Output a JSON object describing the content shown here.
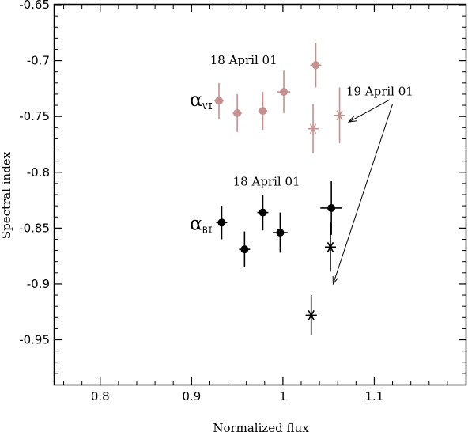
{
  "chart_data": {
    "type": "scatter",
    "title": "",
    "xlabel": "Normalized  flux",
    "ylabel": "Spectral index",
    "xlim": [
      0.75,
      1.2
    ],
    "ylim": [
      -0.99,
      -0.65
    ],
    "x_ticks": [
      0.8,
      0.9,
      1,
      1.1
    ],
    "x_tick_labels": [
      "0.8",
      "0.9",
      "1",
      "1.1"
    ],
    "y_ticks": [
      -0.65,
      -0.7,
      -0.75,
      -0.8,
      -0.85,
      -0.9,
      -0.95
    ],
    "y_tick_labels": [
      "-0.65",
      "-0.7",
      "-0.75",
      "-0.8",
      "-0.85",
      "-0.9",
      "-0.95"
    ],
    "grid": false,
    "colors": {
      "vi": "#c4918f",
      "bi": "#000000"
    },
    "series": [
      {
        "name": "α VI 18 April 01",
        "marker": "circle",
        "color": "#c4918f",
        "points": [
          {
            "x": 0.93,
            "y": -0.736,
            "xerr": 0.005,
            "yerr": 0.016
          },
          {
            "x": 0.95,
            "y": -0.747,
            "xerr": 0.005,
            "yerr": 0.017
          },
          {
            "x": 0.978,
            "y": -0.745,
            "xerr": 0.005,
            "yerr": 0.017
          },
          {
            "x": 1.001,
            "y": -0.728,
            "xerr": 0.007,
            "yerr": 0.019
          },
          {
            "x": 1.036,
            "y": -0.704,
            "xerr": 0.006,
            "yerr": 0.02
          }
        ]
      },
      {
        "name": "α VI 19 April 01",
        "marker": "asterisk",
        "color": "#c4918f",
        "points": [
          {
            "x": 1.033,
            "y": -0.761,
            "xerr": 0.006,
            "yerr": 0.022
          },
          {
            "x": 1.062,
            "y": -0.749,
            "xerr": 0.006,
            "yerr": 0.025
          }
        ]
      },
      {
        "name": "α BI 18 April 01",
        "marker": "circle",
        "color": "#000000",
        "points": [
          {
            "x": 0.933,
            "y": -0.845,
            "xerr": 0.006,
            "yerr": 0.015
          },
          {
            "x": 0.958,
            "y": -0.869,
            "xerr": 0.006,
            "yerr": 0.016
          },
          {
            "x": 0.978,
            "y": -0.836,
            "xerr": 0.006,
            "yerr": 0.016
          },
          {
            "x": 0.997,
            "y": -0.854,
            "xerr": 0.008,
            "yerr": 0.018
          },
          {
            "x": 1.053,
            "y": -0.832,
            "xerr": 0.012,
            "yerr": 0.024
          }
        ]
      },
      {
        "name": "α BI 19 April 01",
        "marker": "asterisk",
        "color": "#000000",
        "points": [
          {
            "x": 1.031,
            "y": -0.928,
            "xerr": 0.006,
            "yerr": 0.018
          },
          {
            "x": 1.052,
            "y": -0.867,
            "xerr": 0.006,
            "yerr": 0.022
          }
        ]
      }
    ],
    "annotations": [
      {
        "id": "vi_date",
        "text": "18 April 01",
        "x": 0.957,
        "y": -0.703
      },
      {
        "id": "bi_date",
        "text": "18 April 01",
        "x": 0.982,
        "y": -0.812
      },
      {
        "id": "apr19",
        "text": "19 April 01",
        "x": 1.106,
        "y": -0.731
      },
      {
        "id": "alpha_vi",
        "text": "α",
        "sub": "VI",
        "x": 0.898,
        "y": -0.735
      },
      {
        "id": "alpha_bi",
        "text": "α",
        "sub": "BI",
        "x": 0.898,
        "y": -0.846
      }
    ],
    "arrows": [
      {
        "from": [
          1.117,
          -0.735
        ],
        "to": [
          1.072,
          -0.755
        ]
      },
      {
        "from": [
          1.12,
          -0.739
        ],
        "to": [
          1.055,
          -0.9
        ]
      }
    ]
  }
}
